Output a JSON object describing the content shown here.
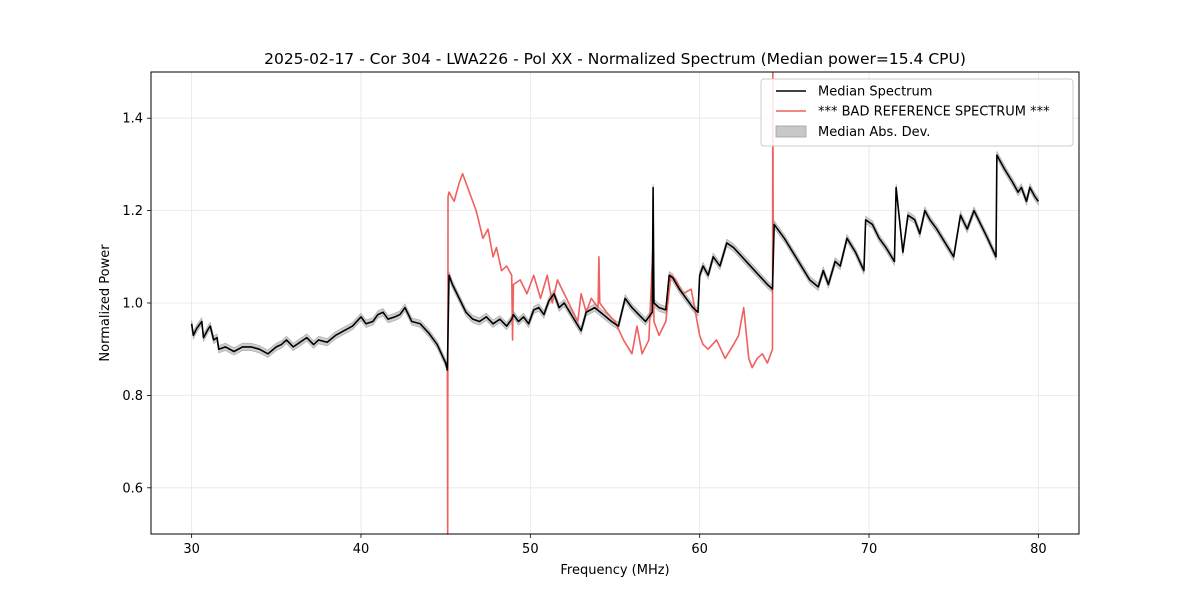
{
  "chart_data": {
    "type": "line",
    "title": "2025-02-17 - Cor 304 - LWA226 - Pol XX - Normalized Spectrum (Median power=15.4 CPU)",
    "xlabel": "Frequency (MHz)",
    "ylabel": "Normalized Power",
    "xlim": [
      27.6,
      82.4
    ],
    "ylim": [
      0.5,
      1.5
    ],
    "xticks": [
      30,
      40,
      50,
      60,
      70,
      80
    ],
    "yticks": [
      0.6,
      0.8,
      1.0,
      1.2,
      1.4
    ],
    "xtick_labels": [
      "30",
      "40",
      "50",
      "60",
      "70",
      "80"
    ],
    "ytick_labels": [
      "0.6",
      "0.8",
      "1.0",
      "1.2",
      "1.4"
    ],
    "grid": true,
    "legend_position": "top-right",
    "colors": {
      "median": "#000000",
      "reference": "#f0605d",
      "mad": "#c8c8c8"
    },
    "legend": [
      {
        "label": "Median Spectrum",
        "kind": "line",
        "color": "#000000"
      },
      {
        "label": "*** BAD REFERENCE SPECTRUM ***",
        "kind": "line",
        "color": "#f0605d"
      },
      {
        "label": "Median Abs. Dev.",
        "kind": "patch",
        "color": "#c8c8c8"
      }
    ],
    "series": [
      {
        "name": "Median Spectrum",
        "mad": 0.008,
        "x": [
          30,
          30.1,
          30.3,
          30.6,
          30.7,
          31.0,
          31.1,
          31.3,
          31.5,
          31.6,
          32.0,
          32.5,
          33.0,
          33.5,
          34.0,
          34.5,
          35.0,
          35.3,
          35.6,
          36.0,
          36.4,
          36.8,
          37.2,
          37.5,
          38.0,
          38.5,
          39.0,
          39.5,
          40.0,
          40.3,
          40.7,
          41.0,
          41.3,
          41.6,
          42.0,
          42.3,
          42.6,
          43.0,
          43.5,
          44.0,
          44.5,
          45.0,
          45.1,
          45.2,
          45.4,
          45.8,
          46.2,
          46.6,
          47.0,
          47.4,
          47.8,
          48.2,
          48.6,
          48.9,
          49.0,
          49.3,
          49.6,
          49.9,
          50.2,
          50.5,
          50.8,
          51.1,
          51.4,
          51.7,
          52.0,
          52.5,
          53.0,
          53.3,
          53.8,
          54.3,
          54.8,
          55.2,
          55.6,
          56.0,
          56.4,
          56.8,
          57.2,
          57.25,
          57.3,
          57.6,
          58.0,
          58.2,
          58.4,
          58.8,
          59.2,
          59.6,
          59.9,
          60.0,
          60.2,
          60.5,
          60.8,
          61.2,
          61.6,
          62.0,
          62.5,
          63.0,
          63.5,
          64.0,
          64.3,
          64.4,
          65.0,
          65.5,
          66.0,
          66.5,
          67.0,
          67.3,
          67.6,
          68.0,
          68.3,
          68.7,
          69.2,
          69.7,
          69.8,
          70.2,
          70.6,
          71.0,
          71.5,
          71.6,
          72.0,
          72.3,
          72.7,
          73.0,
          73.3,
          73.6,
          74.0,
          74.5,
          75.0,
          75.4,
          75.8,
          76.2,
          76.6,
          77.0,
          77.5,
          77.55,
          78.0,
          78.5,
          78.8,
          79.0,
          79.3,
          79.5,
          79.8,
          80.0
        ],
        "y": [
          0.955,
          0.93,
          0.945,
          0.96,
          0.925,
          0.945,
          0.95,
          0.92,
          0.925,
          0.9,
          0.905,
          0.895,
          0.905,
          0.905,
          0.9,
          0.89,
          0.905,
          0.91,
          0.92,
          0.905,
          0.915,
          0.925,
          0.91,
          0.92,
          0.915,
          0.93,
          0.94,
          0.95,
          0.97,
          0.955,
          0.96,
          0.975,
          0.98,
          0.965,
          0.97,
          0.975,
          0.99,
          0.96,
          0.955,
          0.935,
          0.91,
          0.87,
          0.855,
          1.06,
          1.04,
          1.01,
          0.98,
          0.965,
          0.96,
          0.97,
          0.955,
          0.965,
          0.95,
          0.965,
          0.975,
          0.96,
          0.97,
          0.955,
          0.985,
          0.99,
          0.975,
          1.005,
          1.02,
          0.99,
          1.0,
          0.97,
          0.94,
          0.98,
          0.99,
          0.975,
          0.96,
          0.95,
          1.01,
          0.99,
          0.975,
          0.96,
          0.98,
          1.25,
          1.0,
          0.99,
          0.985,
          1.06,
          1.055,
          1.03,
          1.01,
          0.99,
          0.98,
          1.06,
          1.08,
          1.06,
          1.1,
          1.08,
          1.13,
          1.12,
          1.1,
          1.08,
          1.06,
          1.04,
          1.03,
          1.17,
          1.14,
          1.11,
          1.08,
          1.05,
          1.035,
          1.07,
          1.04,
          1.09,
          1.08,
          1.14,
          1.11,
          1.07,
          1.18,
          1.17,
          1.14,
          1.12,
          1.09,
          1.25,
          1.11,
          1.19,
          1.18,
          1.15,
          1.2,
          1.18,
          1.16,
          1.13,
          1.1,
          1.19,
          1.16,
          1.2,
          1.17,
          1.14,
          1.1,
          1.32,
          1.29,
          1.26,
          1.24,
          1.25,
          1.22,
          1.25,
          1.23,
          1.22
        ]
      },
      {
        "name": "*** BAD REFERENCE SPECTRUM ***",
        "x": [
          45.1,
          45.12,
          45.14,
          45.2,
          45.5,
          45.8,
          46.0,
          46.3,
          46.6,
          46.8,
          47.2,
          47.5,
          47.8,
          48.0,
          48.3,
          48.6,
          48.9,
          48.95,
          49.0,
          49.4,
          49.8,
          50.2,
          50.6,
          51.0,
          51.3,
          51.6,
          52.0,
          52.4,
          52.8,
          53.0,
          53.3,
          53.6,
          54.0,
          54.05,
          54.1,
          54.5,
          55.0,
          55.5,
          56.0,
          56.3,
          56.6,
          57.0,
          57.25,
          57.3,
          57.6,
          58.0,
          58.3,
          58.6,
          59.0,
          59.5,
          60.0,
          60.2,
          60.5,
          61.0,
          61.5,
          62.0,
          62.3,
          62.6,
          62.9,
          63.1,
          63.4,
          63.7,
          64.0,
          64.3,
          64.32,
          64.34
        ],
        "y": [
          0.86,
          0.5,
          1.23,
          1.24,
          1.22,
          1.26,
          1.28,
          1.25,
          1.22,
          1.2,
          1.14,
          1.16,
          1.1,
          1.12,
          1.07,
          1.08,
          1.06,
          0.92,
          1.04,
          1.05,
          1.02,
          1.06,
          1.01,
          1.06,
          1.0,
          1.05,
          1.02,
          0.99,
          0.96,
          1.02,
          0.98,
          1.01,
          0.99,
          1.1,
          1.0,
          0.98,
          0.96,
          0.92,
          0.89,
          0.95,
          0.89,
          0.92,
          1.13,
          0.96,
          0.93,
          0.96,
          1.06,
          1.05,
          1.02,
          1.03,
          0.93,
          0.91,
          0.9,
          0.92,
          0.88,
          0.91,
          0.93,
          0.99,
          0.88,
          0.86,
          0.88,
          0.89,
          0.87,
          0.9,
          1.5,
          1.16
        ]
      }
    ]
  }
}
